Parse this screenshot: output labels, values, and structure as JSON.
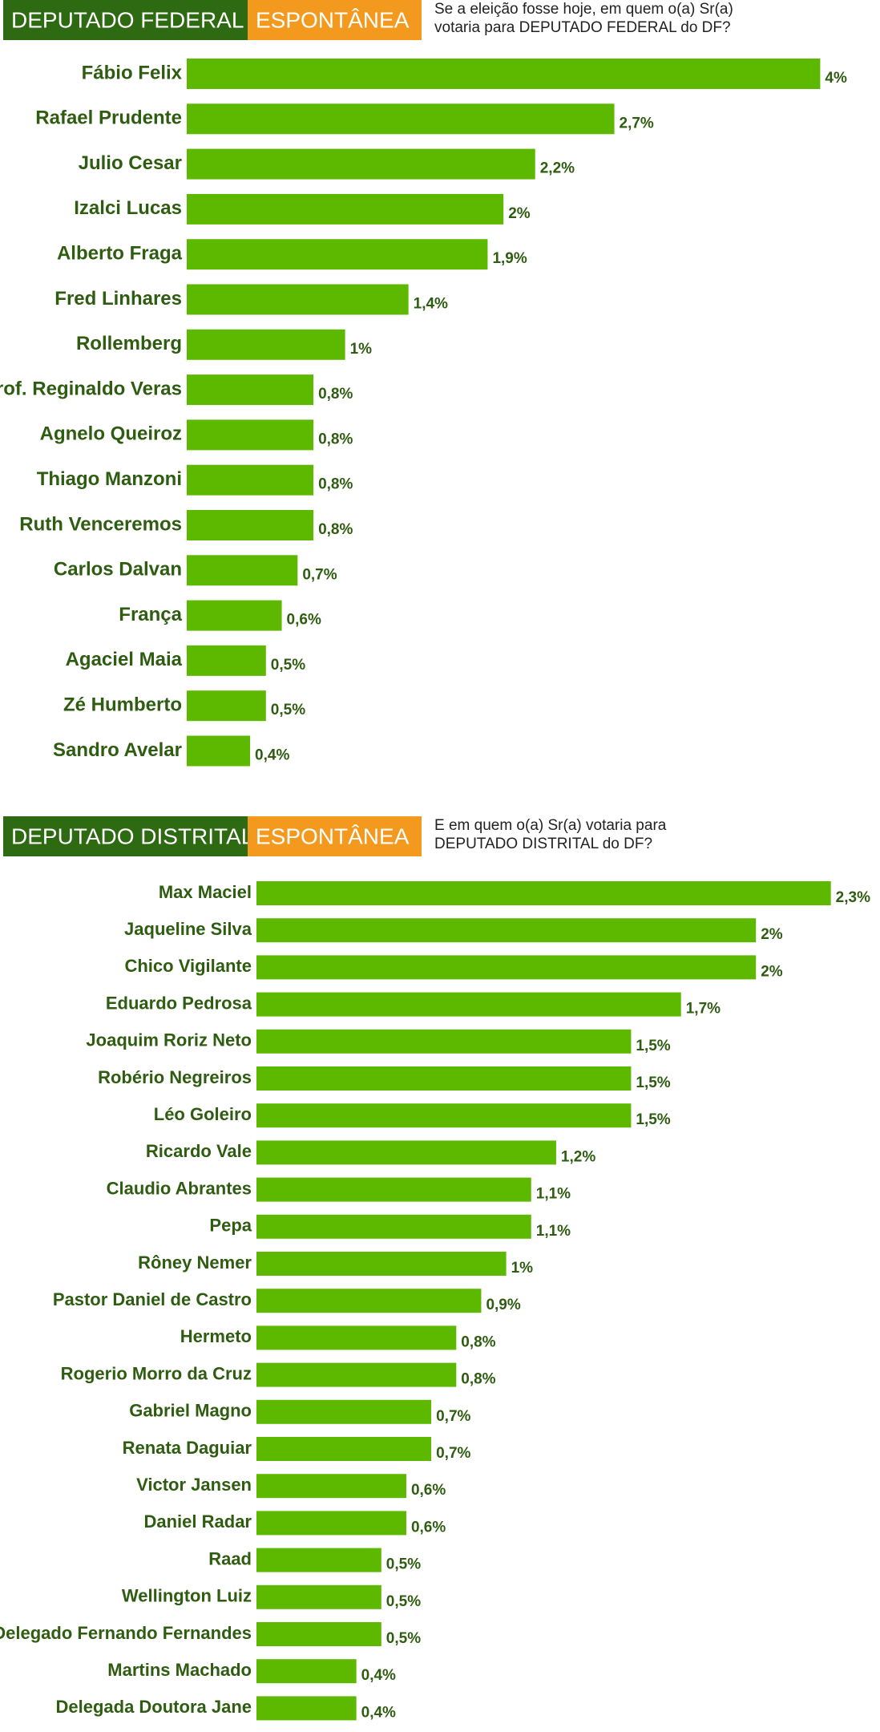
{
  "chart_data": [
    {
      "type": "bar",
      "title": "DEPUTADO FEDERAL",
      "tag": "ESPONTÂNEA",
      "subtitle": [
        "Se a eleição fosse hoje, em quem o(a) Sr(a)",
        "votaria para DEPUTADO FEDERAL do DF?"
      ],
      "color": "#5cb900",
      "categories": [
        "Fábio Felix",
        "Rafael Prudente",
        "Julio Cesar",
        "Izalci Lucas",
        "Alberto Fraga",
        "Fred Linhares",
        "Rollemberg",
        "Prof. Reginaldo Veras",
        "Agnelo Queiroz",
        "Thiago Manzoni",
        "Ruth Venceremos",
        "Carlos Dalvan",
        "França",
        "Agaciel Maia",
        "Zé Humberto",
        "Sandro Avelar"
      ],
      "values": [
        4,
        2.7,
        2.2,
        2,
        1.9,
        1.4,
        1,
        0.8,
        0.8,
        0.8,
        0.8,
        0.7,
        0.6,
        0.5,
        0.5,
        0.4
      ],
      "value_labels": [
        "4%",
        "2,7%",
        "2,2%",
        "2%",
        "1,9%",
        "1,4%",
        "1%",
        "0,8%",
        "0,8%",
        "0,8%",
        "0,8%",
        "0,7%",
        "0,6%",
        "0,5%",
        "0,5%",
        "0,4%"
      ]
    },
    {
      "type": "bar",
      "title": "DEPUTADO DISTRITAL",
      "tag": "ESPONTÂNEA",
      "subtitle": [
        "E em quem o(a) Sr(a) votaria para",
        "DEPUTADO DISTRITAL do DF?"
      ],
      "color": "#5cb900",
      "categories": [
        "Max Maciel",
        "Jaqueline Silva",
        "Chico Vigilante",
        "Eduardo Pedrosa",
        "Joaquim Roriz Neto",
        "Robério Negreiros",
        "Léo Goleiro",
        "Ricardo Vale",
        "Claudio Abrantes",
        "Pepa",
        "Rôney Nemer",
        "Pastor Daniel de Castro",
        "Hermeto",
        "Rogerio Morro da Cruz",
        "Gabriel Magno",
        "Renata Daguiar",
        "Victor Jansen",
        "Daniel Radar",
        "Raad",
        "Wellington Luiz",
        "Delegado Fernando Fernandes",
        "Martins Machado",
        "Delegada Doutora Jane"
      ],
      "values": [
        2.3,
        2,
        2,
        1.7,
        1.5,
        1.5,
        1.5,
        1.2,
        1.1,
        1.1,
        1,
        0.9,
        0.8,
        0.8,
        0.7,
        0.7,
        0.6,
        0.6,
        0.5,
        0.5,
        0.5,
        0.4,
        0.4
      ],
      "value_labels": [
        "2,3%",
        "2%",
        "2%",
        "1,7%",
        "1,5%",
        "1,5%",
        "1,5%",
        "1,2%",
        "1,1%",
        "1,1%",
        "1%",
        "0,9%",
        "0,8%",
        "0,8%",
        "0,7%",
        "0,7%",
        "0,6%",
        "0,6%",
        "0,5%",
        "0,5%",
        "0,5%",
        "0,4%",
        "0,4%"
      ]
    }
  ]
}
